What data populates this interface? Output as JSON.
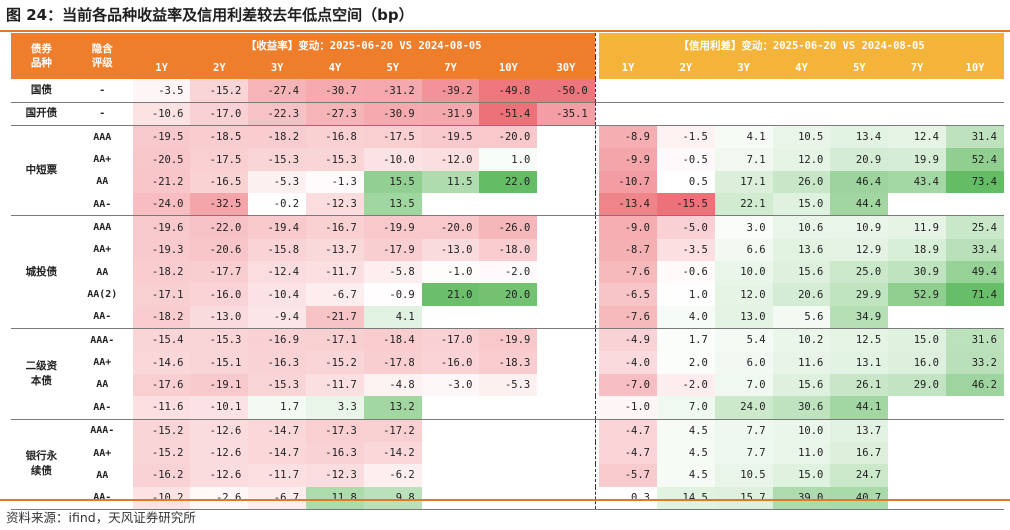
{
  "title": "图 24：当前各品种收益率及信用利差较去年低点空间（bp）",
  "source": "资料来源：ifind，天风证券研究所",
  "header": {
    "col1": "债券品种",
    "col2": "隐含评级",
    "yield_title": "【收益率】变动：2025-06-20 VS 2024-08-05",
    "spread_title": "【信用利差】变动：2025-06-20 VS 2024-08-05",
    "yield_tenors": [
      "1Y",
      "2Y",
      "3Y",
      "4Y",
      "5Y",
      "7Y",
      "10Y",
      "30Y"
    ],
    "spread_tenors": [
      "1Y",
      "2Y",
      "3Y",
      "4Y",
      "5Y",
      "7Y",
      "10Y"
    ]
  },
  "colors": {
    "neg_max": "#ec6a72",
    "pos_max": "#5cb85c",
    "header_orange": "#ee7d2c",
    "header_yellow": "#f4b43a",
    "rule": "#e07a2a"
  },
  "groups": [
    {
      "category": "国债",
      "rows": [
        {
          "rating": "-",
          "yield": [
            "-3.5",
            "-15.2",
            "-27.4",
            "-30.7",
            "-31.2",
            "-39.2",
            "-49.8",
            "-50.0"
          ],
          "spread": [
            "",
            "",
            "",
            "",
            "",
            "",
            ""
          ]
        }
      ]
    },
    {
      "category": "国开债",
      "rows": [
        {
          "rating": "-",
          "yield": [
            "-10.6",
            "-17.0",
            "-22.3",
            "-27.3",
            "-30.9",
            "-31.9",
            "-51.4",
            "-35.1"
          ],
          "spread": [
            "",
            "",
            "",
            "",
            "",
            "",
            ""
          ]
        }
      ]
    },
    {
      "category": "中短票",
      "rows": [
        {
          "rating": "AAA",
          "yield": [
            "-19.5",
            "-18.5",
            "-18.2",
            "-16.8",
            "-17.5",
            "-19.5",
            "-20.0",
            ""
          ],
          "spread": [
            "-8.9",
            "-1.5",
            "4.1",
            "10.5",
            "13.4",
            "12.4",
            "31.4"
          ]
        },
        {
          "rating": "AA+",
          "yield": [
            "-20.5",
            "-17.5",
            "-15.3",
            "-15.3",
            "-10.0",
            "-12.0",
            "1.0",
            ""
          ],
          "spread": [
            "-9.9",
            "-0.5",
            "7.1",
            "12.0",
            "20.9",
            "19.9",
            "52.4"
          ]
        },
        {
          "rating": "AA",
          "yield": [
            "-21.2",
            "-16.5",
            "-5.3",
            "-1.3",
            "15.5",
            "11.5",
            "22.0",
            ""
          ],
          "spread": [
            "-10.7",
            "0.5",
            "17.1",
            "26.0",
            "46.4",
            "43.4",
            "73.4"
          ]
        },
        {
          "rating": "AA-",
          "yield": [
            "-24.0",
            "-32.5",
            "-0.2",
            "-12.3",
            "13.5",
            "",
            "",
            ""
          ],
          "spread": [
            "-13.4",
            "-15.5",
            "22.1",
            "15.0",
            "44.4",
            "",
            ""
          ]
        }
      ]
    },
    {
      "category": "城投债",
      "rows": [
        {
          "rating": "AAA",
          "yield": [
            "-19.6",
            "-22.0",
            "-19.4",
            "-16.7",
            "-19.9",
            "-20.0",
            "-26.0",
            ""
          ],
          "spread": [
            "-9.0",
            "-5.0",
            "3.0",
            "10.6",
            "10.9",
            "11.9",
            "25.4"
          ]
        },
        {
          "rating": "AA+",
          "yield": [
            "-19.3",
            "-20.6",
            "-15.8",
            "-13.7",
            "-17.9",
            "-13.0",
            "-18.0",
            ""
          ],
          "spread": [
            "-8.7",
            "-3.5",
            "6.6",
            "13.6",
            "12.9",
            "18.9",
            "33.4"
          ]
        },
        {
          "rating": "AA",
          "yield": [
            "-18.2",
            "-17.7",
            "-12.4",
            "-11.7",
            "-5.8",
            "-1.0",
            "-2.0",
            ""
          ],
          "spread": [
            "-7.6",
            "-0.6",
            "10.0",
            "15.6",
            "25.0",
            "30.9",
            "49.4"
          ]
        },
        {
          "rating": "AA(2)",
          "yield": [
            "-17.1",
            "-16.0",
            "-10.4",
            "-6.7",
            "-0.9",
            "21.0",
            "20.0",
            ""
          ],
          "spread": [
            "-6.5",
            "1.0",
            "12.0",
            "20.6",
            "29.9",
            "52.9",
            "71.4"
          ]
        },
        {
          "rating": "AA-",
          "yield": [
            "-18.2",
            "-13.0",
            "-9.4",
            "-21.7",
            "4.1",
            "",
            "",
            ""
          ],
          "spread": [
            "-7.6",
            "4.0",
            "13.0",
            "5.6",
            "34.9",
            "",
            ""
          ]
        }
      ]
    },
    {
      "category": "二级资本债",
      "rows": [
        {
          "rating": "AAA-",
          "yield": [
            "-15.4",
            "-15.3",
            "-16.9",
            "-17.1",
            "-18.4",
            "-17.0",
            "-19.9",
            ""
          ],
          "spread": [
            "-4.9",
            "1.7",
            "5.4",
            "10.2",
            "12.5",
            "15.0",
            "31.6"
          ]
        },
        {
          "rating": "AA+",
          "yield": [
            "-14.6",
            "-15.1",
            "-16.3",
            "-15.2",
            "-17.8",
            "-16.0",
            "-18.3",
            ""
          ],
          "spread": [
            "-4.0",
            "2.0",
            "6.0",
            "11.6",
            "13.1",
            "16.0",
            "33.2"
          ]
        },
        {
          "rating": "AA",
          "yield": [
            "-17.6",
            "-19.1",
            "-15.3",
            "-11.7",
            "-4.8",
            "-3.0",
            "-5.3",
            ""
          ],
          "spread": [
            "-7.0",
            "-2.0",
            "7.0",
            "15.6",
            "26.1",
            "29.0",
            "46.2"
          ]
        },
        {
          "rating": "AA-",
          "yield": [
            "-11.6",
            "-10.1",
            "1.7",
            "3.3",
            "13.2",
            "",
            "",
            ""
          ],
          "spread": [
            "-1.0",
            "7.0",
            "24.0",
            "30.6",
            "44.1",
            "",
            ""
          ]
        }
      ]
    },
    {
      "category": "银行永续债",
      "rows": [
        {
          "rating": "AAA-",
          "yield": [
            "-15.2",
            "-12.6",
            "-14.7",
            "-17.3",
            "-17.2",
            "",
            "",
            ""
          ],
          "spread": [
            "-4.7",
            "4.5",
            "7.7",
            "10.0",
            "13.7",
            "",
            ""
          ]
        },
        {
          "rating": "AA+",
          "yield": [
            "-15.2",
            "-12.6",
            "-14.7",
            "-16.3",
            "-14.2",
            "",
            "",
            ""
          ],
          "spread": [
            "-4.7",
            "4.5",
            "7.7",
            "11.0",
            "16.7",
            "",
            ""
          ]
        },
        {
          "rating": "AA",
          "yield": [
            "-16.2",
            "-12.6",
            "-11.7",
            "-12.3",
            "-6.2",
            "",
            "",
            ""
          ],
          "spread": [
            "-5.7",
            "4.5",
            "10.5",
            "15.0",
            "24.7",
            "",
            ""
          ]
        },
        {
          "rating": "AA-",
          "yield": [
            "-10.2",
            "-2.6",
            "-6.7",
            "11.8",
            "9.8",
            "",
            "",
            ""
          ],
          "spread": [
            "0.3",
            "14.5",
            "15.7",
            "39.0",
            "40.7",
            "",
            ""
          ]
        }
      ]
    }
  ]
}
